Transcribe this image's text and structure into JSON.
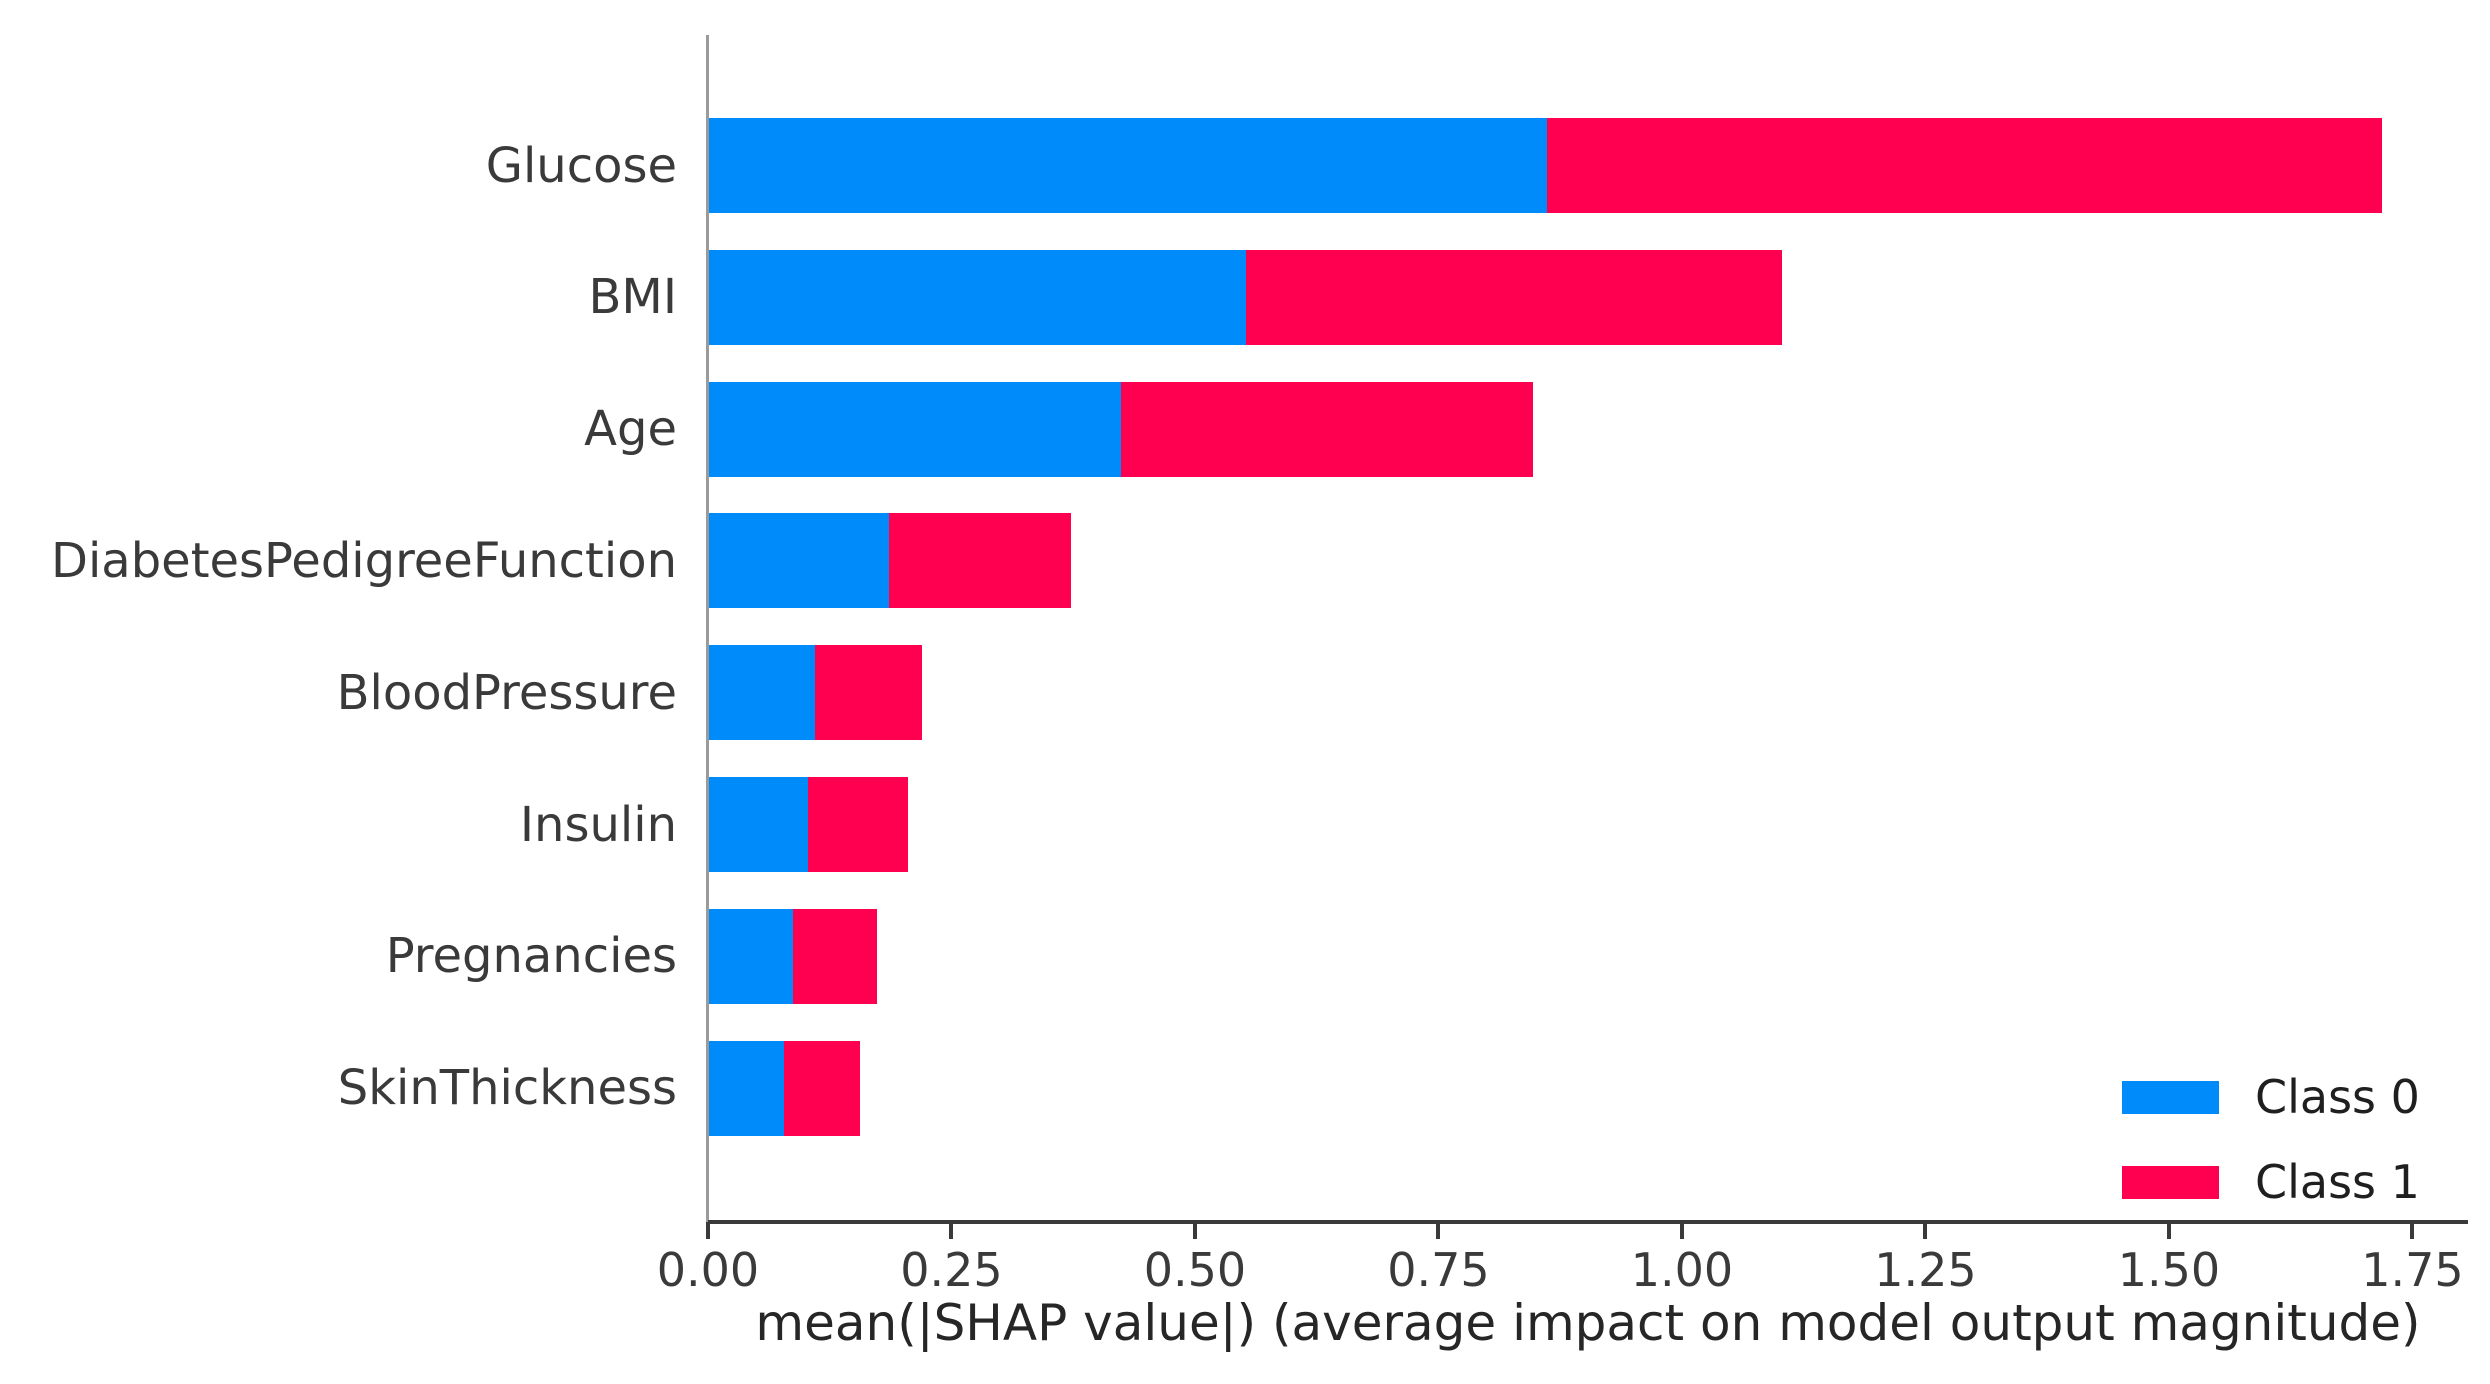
{
  "chart_data": {
    "type": "bar",
    "orientation": "horizontal",
    "stacked": true,
    "title": "",
    "categories": [
      "Glucose",
      "BMI",
      "Age",
      "DiabetesPedigreeFunction",
      "BloodPressure",
      "Insulin",
      "Pregnancies",
      "SkinThickness"
    ],
    "series": [
      {
        "name": "Class 0",
        "color": "#008bfb",
        "values": [
          0.86,
          0.551,
          0.423,
          0.185,
          0.109,
          0.102,
          0.086,
          0.077
        ]
      },
      {
        "name": "Class 1",
        "color": "#ff0051",
        "values": [
          0.858,
          0.551,
          0.423,
          0.187,
          0.11,
          0.102,
          0.086,
          0.078
        ]
      }
    ],
    "xlabel": "mean(|SHAP value|) (average impact on model output magnitude)",
    "ylabel": "",
    "xticks": [
      0.0,
      0.25,
      0.5,
      0.75,
      1.0,
      1.25,
      1.5,
      1.75
    ],
    "xtick_labels": [
      "0.00",
      "0.25",
      "0.50",
      "0.75",
      "1.00",
      "1.25",
      "1.50",
      "1.75"
    ],
    "xlim": [
      0,
      1.805
    ],
    "grid": false,
    "legend_position": "lower right",
    "axis_color": "#3a3a3a",
    "spine_color": "#9a9a9a"
  }
}
